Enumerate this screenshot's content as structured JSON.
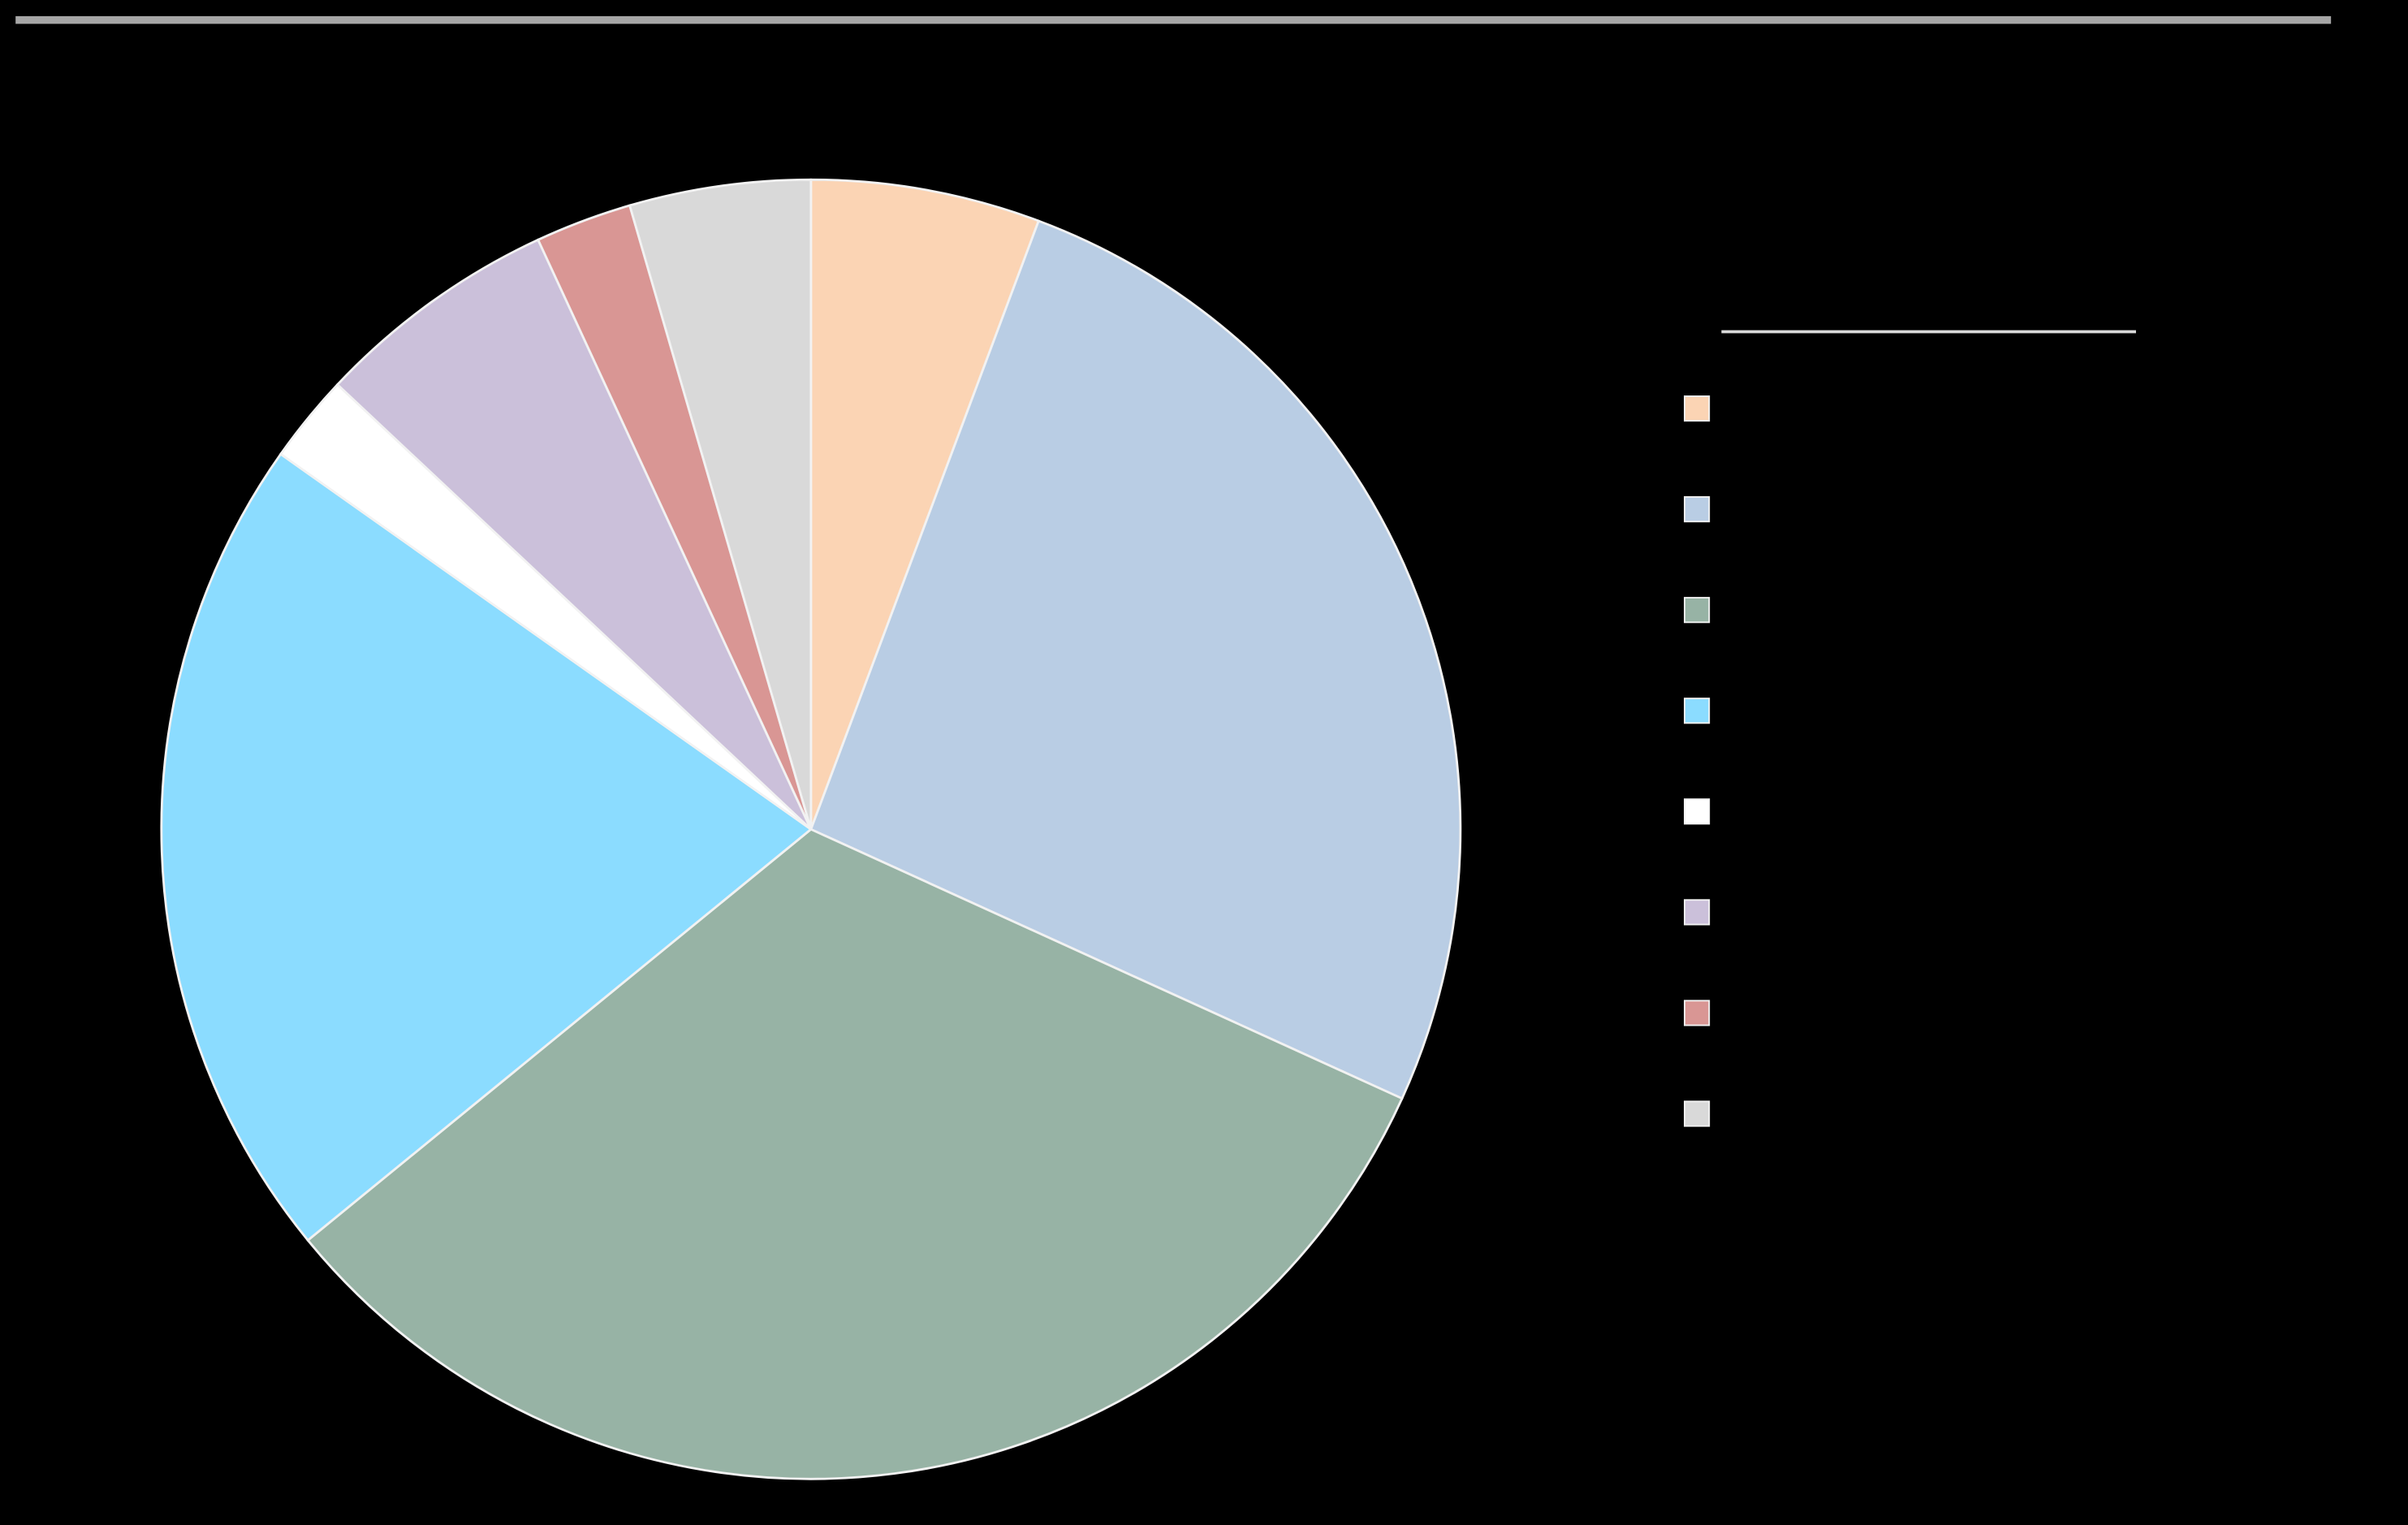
{
  "chart_data": {
    "type": "pie",
    "values": [
      5.7,
      26.1,
      32.3,
      20.7,
      2.2,
      6.1,
      2.4,
      4.5
    ],
    "colors": [
      "#fbd4b4",
      "#b9cde4",
      "#97b3a5",
      "#8bdcff",
      "#ffffff",
      "#cbc0da",
      "#d99694",
      "#d9d9d9"
    ],
    "legend": "right"
  }
}
